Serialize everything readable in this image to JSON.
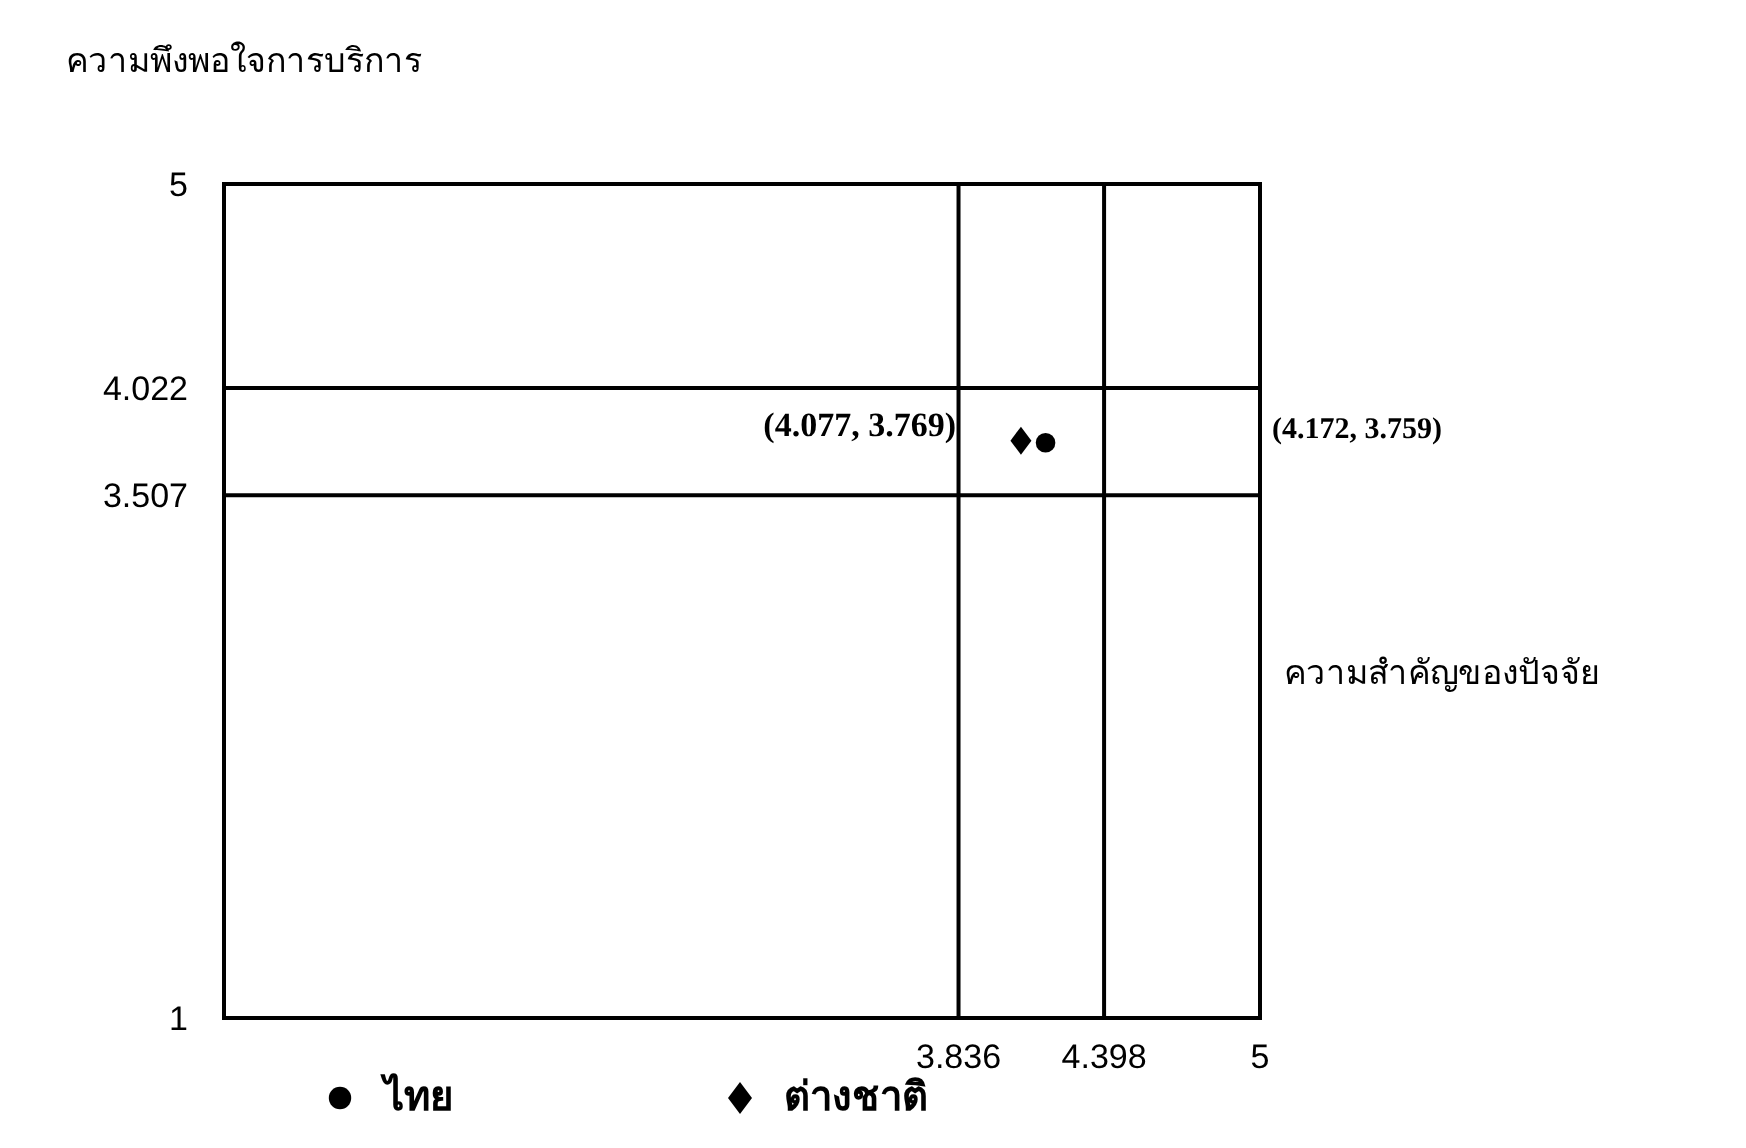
{
  "chart_data": {
    "type": "scatter",
    "ylabel": "ความพึงพอใจการบริการ",
    "xlabel": "ความสำคัญของปัจจัย",
    "xlim": [
      1,
      5
    ],
    "ylim": [
      1,
      5
    ],
    "xticks": [
      3.836,
      4.398,
      5
    ],
    "yticks": [
      1,
      3.507,
      4.022,
      5
    ],
    "ref_lines": [
      {
        "axis": "x",
        "value": 3.836,
        "color": "#000000"
      },
      {
        "axis": "x",
        "value": 4.398,
        "color": "#000000"
      },
      {
        "axis": "y",
        "value": 3.507,
        "color": "#000000"
      },
      {
        "axis": "y",
        "value": 4.022,
        "color": "#000000"
      }
    ],
    "series": [
      {
        "name": "ไทย",
        "color": "#000000",
        "marker": "circle",
        "x": [
          4.172
        ],
        "values": [
          3.759
        ]
      },
      {
        "name": "ต่างชาติ",
        "color": "#000000",
        "marker": "diamond",
        "x": [
          4.077
        ],
        "values": [
          3.769
        ]
      }
    ],
    "annotations": [
      "(4.077, 3.769)",
      "(4.172, 3.759)"
    ],
    "grid": false,
    "legend": "bottom"
  }
}
